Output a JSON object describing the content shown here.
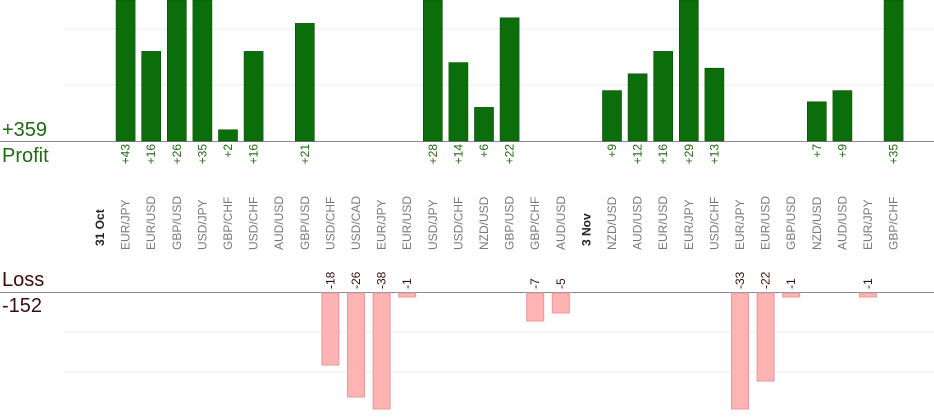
{
  "summary": {
    "profit_total": "+359",
    "profit_label": "Profit",
    "loss_label": "Loss",
    "loss_total": "-152"
  },
  "colors": {
    "profit_bar": "#0b6e0b",
    "loss_bar": "#ffb3b3",
    "profit_text": "#1e6b12",
    "loss_text": "#3a0d0d",
    "axis_label": "#7a7a7a",
    "date_label": "#222222"
  },
  "chart_data": {
    "type": "bar",
    "categories": [
      {
        "label": "31 Oct",
        "kind": "date"
      },
      {
        "label": "EUR/JPY",
        "profit": 43,
        "loss": null
      },
      {
        "label": "EUR/USD",
        "profit": 16,
        "loss": null
      },
      {
        "label": "GBP/USD",
        "profit": 26,
        "loss": null
      },
      {
        "label": "USD/JPY",
        "profit": 35,
        "loss": null
      },
      {
        "label": "GBP/CHF",
        "profit": 2,
        "loss": null
      },
      {
        "label": "USD/CHF",
        "profit": 16,
        "loss": null
      },
      {
        "label": "AUD/USD",
        "profit": null,
        "loss": null
      },
      {
        "label": "GBP/USD",
        "profit": 21,
        "loss": null
      },
      {
        "label": "USD/CHF",
        "profit": null,
        "loss": -18
      },
      {
        "label": "USD/CAD",
        "profit": null,
        "loss": -26
      },
      {
        "label": "EUR/JPY",
        "profit": null,
        "loss": -38
      },
      {
        "label": "EUR/USD",
        "profit": null,
        "loss": -1
      },
      {
        "label": "USD/JPY",
        "profit": 28,
        "loss": null
      },
      {
        "label": "USD/CHF",
        "profit": 14,
        "loss": null
      },
      {
        "label": "NZD/USD",
        "profit": 6,
        "loss": null
      },
      {
        "label": "GBP/USD",
        "profit": 22,
        "loss": null
      },
      {
        "label": "GBP/CHF",
        "profit": null,
        "loss": -7
      },
      {
        "label": "AUD/USD",
        "profit": null,
        "loss": -5
      },
      {
        "label": "3 Nov",
        "kind": "date"
      },
      {
        "label": "NZD/USD",
        "profit": 9,
        "loss": null
      },
      {
        "label": "AUD/USD",
        "profit": 12,
        "loss": null
      },
      {
        "label": "EUR/USD",
        "profit": 16,
        "loss": null
      },
      {
        "label": "EUR/JPY",
        "profit": 29,
        "loss": null
      },
      {
        "label": "USD/CHF",
        "profit": 13,
        "loss": null
      },
      {
        "label": "EUR/JPY",
        "profit": null,
        "loss": -33
      },
      {
        "label": "EUR/USD",
        "profit": null,
        "loss": -22
      },
      {
        "label": "GBP/USD",
        "profit": null,
        "loss": -1
      },
      {
        "label": "NZD/USD",
        "profit": 7,
        "loss": null
      },
      {
        "label": "AUD/USD",
        "profit": 9,
        "loss": null
      },
      {
        "label": "EUR/JPY",
        "profit": null,
        "loss": -1
      },
      {
        "label": "GBP/CHF",
        "profit": 35,
        "loss": null
      }
    ],
    "profit_axis": {
      "min": 0,
      "max": 26,
      "gridlines": [
        10,
        20
      ]
    },
    "loss_axis": {
      "min": -20,
      "max": 0,
      "gridlines": [
        -10,
        -20
      ]
    },
    "grid": true,
    "legend": "none"
  }
}
